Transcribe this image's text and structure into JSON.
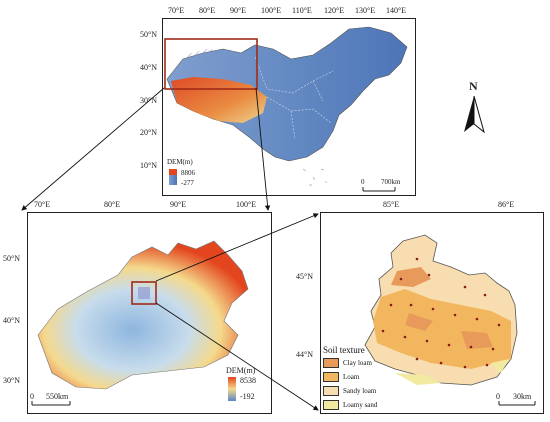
{
  "top_map": {
    "lon_ticks": [
      "70°E",
      "80°E",
      "90°E",
      "100°E",
      "110°E",
      "120°E",
      "130°E",
      "140°E"
    ],
    "lat_ticks": [
      "50°N",
      "40°N",
      "30°N",
      "20°N",
      "10°N"
    ],
    "dem_title": "DEM(m)",
    "dem_max": "8806",
    "dem_min": "-277",
    "scale_zero": "0",
    "scale_label": "700km"
  },
  "north_arrow": {
    "label": "N"
  },
  "left_map": {
    "lon_ticks": [
      "70°E",
      "80°E",
      "90°E",
      "100°E"
    ],
    "lat_ticks": [
      "50°N",
      "40°N",
      "30°N"
    ],
    "dem_title": "DEM(m)",
    "dem_max": "8538",
    "dem_min": "-192",
    "scale_zero": "0",
    "scale_label": "550km"
  },
  "right_map": {
    "lon_ticks": [
      "85°E",
      "86°E"
    ],
    "lat_ticks": [
      "45°N",
      "44°N"
    ],
    "scale_zero": "0",
    "scale_label": "30km",
    "legend_title": "Soil texture",
    "soil_classes": [
      {
        "label": "Clay loam",
        "color": "#e79a5a"
      },
      {
        "label": "Loam",
        "color": "#f2b65e"
      },
      {
        "label": "Sandy loam",
        "color": "#f8ddb0"
      },
      {
        "label": "Loamy sand",
        "color": "#f3eaa2"
      }
    ]
  },
  "colors": {
    "dem_high": "#e3461e",
    "dem_mid": "#f4d98c",
    "dem_low": "#5c86c4",
    "inset_box": "#a02a18",
    "sample_point": "#8b1a1a"
  }
}
